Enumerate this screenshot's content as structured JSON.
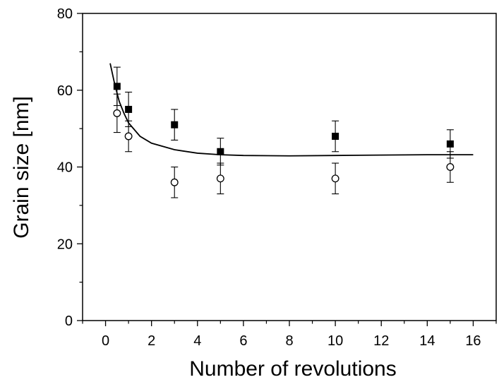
{
  "chart_data": {
    "type": "scatter",
    "title": "",
    "xlabel": "Number of revolutions",
    "ylabel": "Grain size [nm]",
    "xlim": [
      -1,
      17
    ],
    "ylim": [
      0,
      80
    ],
    "x_major_ticks": [
      0,
      2,
      4,
      6,
      8,
      10,
      12,
      14,
      16
    ],
    "x_tick_labels": [
      "0",
      "2",
      "4",
      "6",
      "8",
      "10",
      "12",
      "14",
      "16"
    ],
    "y_major_ticks": [
      0,
      20,
      40,
      60,
      80
    ],
    "y_tick_labels": [
      "0",
      "20",
      "40",
      "60",
      "80"
    ],
    "grid": false,
    "legend": "none",
    "series": [
      {
        "marker": "filled-square",
        "color": "#000000",
        "points": [
          {
            "x": 0.5,
            "y": 61,
            "err": 5
          },
          {
            "x": 1,
            "y": 55,
            "err": 4.5
          },
          {
            "x": 3,
            "y": 51,
            "err": 4
          },
          {
            "x": 5,
            "y": 44,
            "err": 3.5
          },
          {
            "x": 10,
            "y": 48,
            "err": 4
          },
          {
            "x": 15,
            "y": 46,
            "err": 3.7
          }
        ]
      },
      {
        "marker": "open-circle",
        "color": "#000000",
        "points": [
          {
            "x": 0.5,
            "y": 54,
            "err": 5
          },
          {
            "x": 1,
            "y": 48,
            "err": 4
          },
          {
            "x": 3,
            "y": 36,
            "err": 4
          },
          {
            "x": 5,
            "y": 37,
            "err": 4
          },
          {
            "x": 10,
            "y": 37,
            "err": 4
          },
          {
            "x": 15,
            "y": 40,
            "err": 4
          }
        ]
      }
    ],
    "fit_curve": {
      "type": "line",
      "color": "#000000",
      "points": [
        [
          0.2,
          67
        ],
        [
          0.4,
          61.5
        ],
        [
          0.6,
          57
        ],
        [
          0.8,
          54
        ],
        [
          1.0,
          51.5
        ],
        [
          1.5,
          48
        ],
        [
          2,
          46.2
        ],
        [
          3,
          44.5
        ],
        [
          4,
          43.6
        ],
        [
          5,
          43.2
        ],
        [
          6,
          43.0
        ],
        [
          8,
          42.9
        ],
        [
          10,
          43.0
        ],
        [
          12,
          43.1
        ],
        [
          14,
          43.2
        ],
        [
          16,
          43.2
        ]
      ]
    }
  }
}
